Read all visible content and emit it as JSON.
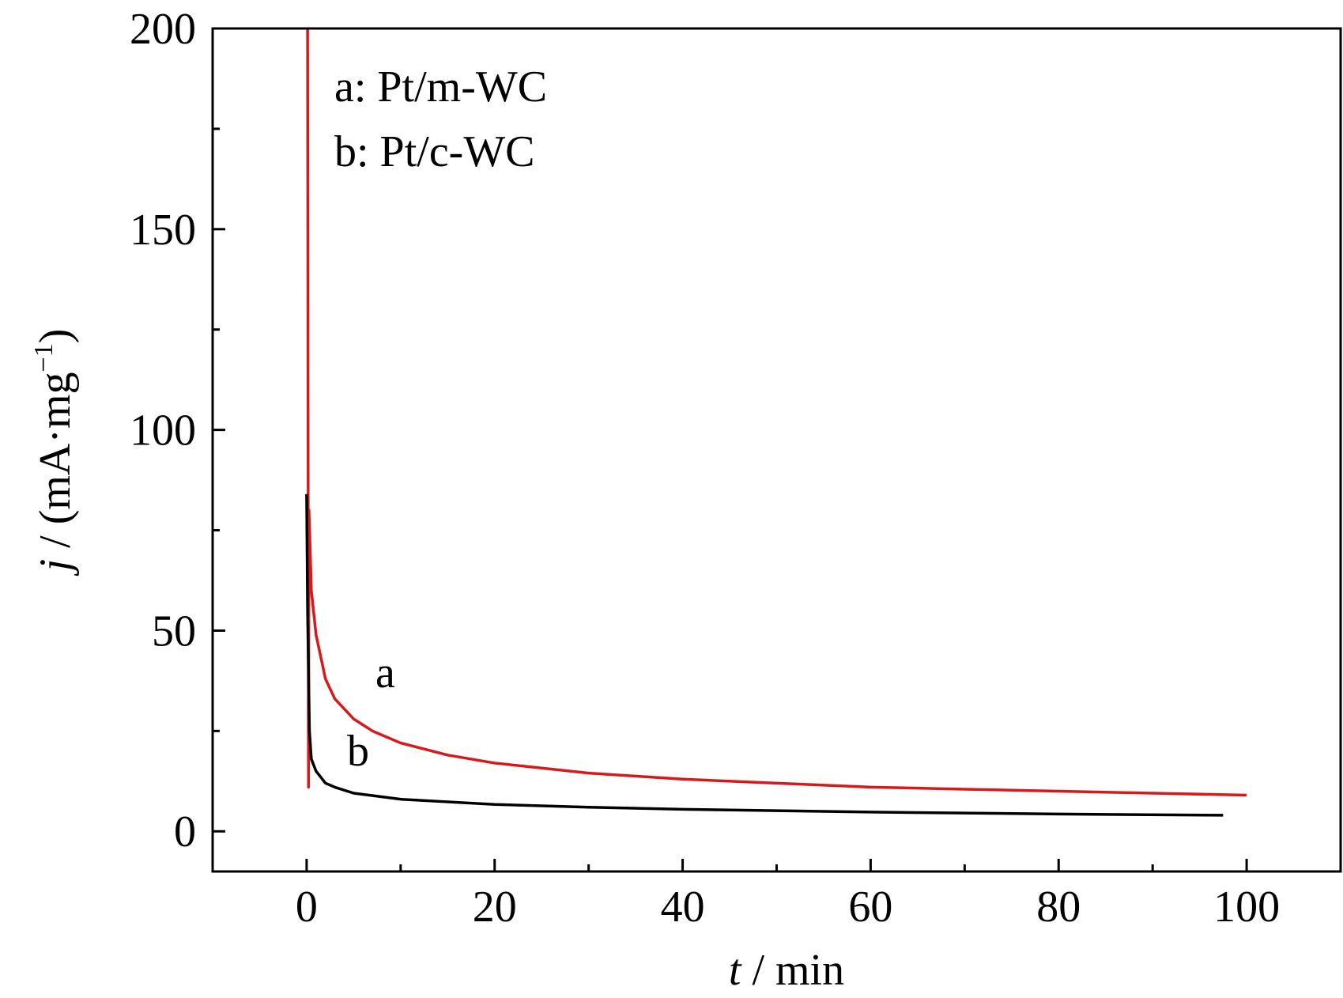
{
  "chart_data": {
    "type": "line",
    "xlabel": {
      "var": "t",
      "unit": " / min"
    },
    "ylabel": {
      "var": "j",
      "unit": " / (mA·mg",
      "exp": "−1",
      "close": ")"
    },
    "xlim": [
      -10,
      110
    ],
    "xticks": [
      0,
      20,
      40,
      60,
      80,
      100
    ],
    "xticks_minor": [
      -10,
      10,
      30,
      50,
      70,
      90,
      110
    ],
    "ylim": [
      -10,
      200
    ],
    "yticks": [
      0,
      50,
      100,
      150,
      200
    ],
    "yticks_minor": [
      25,
      75,
      125,
      175
    ],
    "series": [
      {
        "name": "a: Pt/m-WC",
        "label": "a",
        "color": "#d7191c",
        "x": [
          0.1,
          0.2,
          0.25,
          0.5,
          1,
          2,
          3,
          5,
          7,
          10,
          15,
          20,
          30,
          40,
          50,
          60,
          70,
          80,
          90,
          100
        ],
        "values": [
          200,
          11,
          80,
          60,
          49,
          38,
          33,
          28,
          25,
          22,
          19,
          17,
          14.5,
          13,
          12,
          11,
          10.5,
          10,
          9.5,
          9
        ]
      },
      {
        "name": "b: Pt/c-WC",
        "label": "b",
        "color": "#000000",
        "x": [
          0,
          0.1,
          0.3,
          0.5,
          1,
          2,
          3,
          5,
          10,
          20,
          30,
          40,
          60,
          80,
          97.5
        ],
        "values": [
          84,
          55,
          25,
          18,
          15,
          12,
          11,
          9.5,
          8,
          6.7,
          6,
          5.5,
          4.8,
          4.3,
          4
        ]
      }
    ]
  }
}
